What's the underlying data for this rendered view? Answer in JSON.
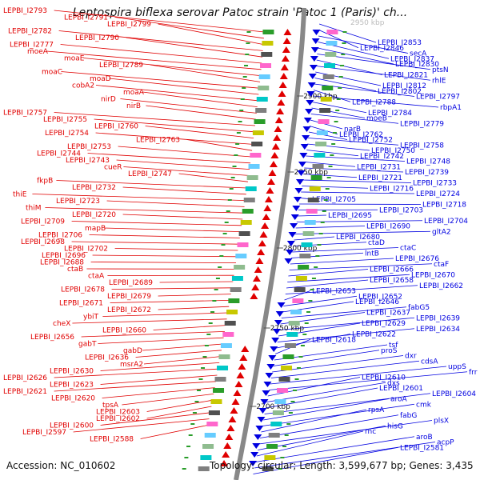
{
  "title": "Leptospira biflexa serovar Patoc strain 'Patoc 1 (Paris)' ch...",
  "footer": {
    "accession": "Accession: NC_010602",
    "summary": "Topology: circular; Length: 3,599,677 bp; Genes: 3,435"
  },
  "ticks": [
    "2900 kbp",
    "2850 kbp",
    "2800 kbp",
    "2750 kbp",
    "2700 kbp"
  ],
  "faded_tick": "2950 kbp",
  "colors": {
    "left": "#e00000",
    "right": "#0000e0",
    "backbone": "#888888"
  },
  "left_labels": [
    "LEPBI_I2793",
    "LEPBI_I2791",
    "LEPBI_I2799",
    "LEPBI_I2782",
    "LEPBI_I2790",
    "LEPBI_I2777",
    "moeA",
    "moaE",
    "LEPBI_I2789",
    "moaC",
    "moaD",
    "cobA2",
    "moaA",
    "nirD",
    "nirB",
    "LEPBI_I2757",
    "LEPBI_I2755",
    "LEPBI_I2760",
    "LEPBI_I2754",
    "LEPBI_I2763",
    "LEPBI_I2753",
    "LEPBI_I2744",
    "LEPBI_I2743",
    "cueR",
    "LEPBI_I2747",
    "fkpB",
    "LEPBI_I2732",
    "thiE",
    "LEPBI_I2723",
    "thiM",
    "LEPBI_I2720",
    "LEPBI_I2709",
    "mapB",
    "LEPBI_I2706",
    "LEPBI_I2698",
    "LEPBI_I2702",
    "LEPBI_I2696",
    "LEPBI_I2688",
    "ctaB",
    "ctaA",
    "LEPBI_I2689",
    "LEPBI_I2678",
    "LEPBI_I2679",
    "LEPBI_I2671",
    "LEPBI_I2672",
    "ybiT",
    "cheX",
    "LEPBI_I2660",
    "LEPBI_I2656",
    "gabT",
    "gabD",
    "LEPBI_I2636",
    "msrA2",
    "LEPBI_I2630",
    "LEPBI_I2626",
    "LEPBI_I2623",
    "LEPBI_I2621",
    "LEPBI_I2620",
    "tpsA",
    "LEPBI_I2603",
    "LEPBI_I2602",
    "LEPBI_I2600",
    "LEPBI_I2597",
    "LEPBI_I2588"
  ],
  "right_labels": [
    "LEPBI_I2853",
    "LEPBI_I2846",
    "secA",
    "LEPBI_I2837",
    "LEPBI_I2830",
    "ptsN",
    "LEPBI_I2821",
    "rhlE",
    "LEPBI_I2812",
    "LEPBI_I2802",
    "LEPBI_I2797",
    "LEPBI_I2788",
    "rbpA1",
    "LEPBI_I2784",
    "moeB",
    "LEPBI_I2779",
    "narB",
    "LEPBI_I2762",
    "LEPBI_I2752",
    "LEPBI_I2758",
    "LEPBI_I2750",
    "LEPBI_I2742",
    "LEPBI_I2748",
    "LEPBI_I2731",
    "LEPBI_I2739",
    "LEPBI_I2721",
    "LEPBI_I2733",
    "LEPBI_I2716",
    "LEPBI_I2724",
    "LEPBI_I2705",
    "LEPBI_I2718",
    "LEPBI_I2703",
    "LEPBI_I2695",
    "LEPBI_I2704",
    "LEPBI_I2690",
    "gltA2",
    "LEPBI_I2680",
    "ctaD",
    "ctaC",
    "lntB",
    "LEPBI_I2676",
    "ctaF",
    "LEPBI_I2666",
    "LEPBI_I2670",
    "LEPBI_I2658",
    "LEPBI_I2662",
    "LEPBI_I2653",
    "LEPBI_I2652",
    "LEPBI_I2646",
    "fabG5",
    "LEPBI_I2637",
    "LEPBI_I2639",
    "LEPBI_I2629",
    "LEPBI_I2634",
    "LEPBI_I2622",
    "LEPBI_I2618",
    "tsf",
    "proS",
    "dxr",
    "cdsA",
    "uppS",
    "frr",
    "LEPBI_I2610",
    "dxs",
    "LEPBI_I2601",
    "LEPBI_I2604",
    "aroA",
    "cmk",
    "rpsA",
    "fabG",
    "plsX",
    "hisG",
    "rnc",
    "aroB",
    "acpP",
    "LEPBI_I2581"
  ]
}
